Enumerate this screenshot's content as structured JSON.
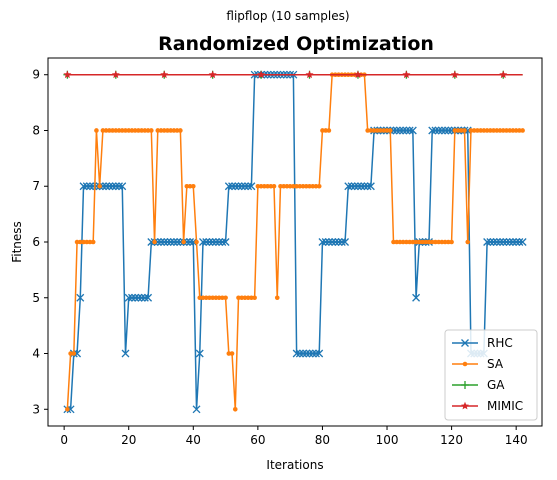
{
  "chart_data": {
    "type": "line",
    "suptitle": "flipflop (10 samples)",
    "title": "Randomized Optimization",
    "xlabel": "Iterations",
    "ylabel": "Fitness",
    "xlim": [
      -5,
      148
    ],
    "ylim": [
      2.7,
      9.3
    ],
    "xticks": [
      0,
      20,
      40,
      60,
      80,
      100,
      120,
      140
    ],
    "yticks": [
      3,
      4,
      5,
      6,
      7,
      8,
      9
    ],
    "grid": false,
    "legend_position": "lower-right",
    "series": [
      {
        "name": "RHC",
        "color": "#1f77b4",
        "marker": "x",
        "segments": [
          [
            1,
            3
          ],
          [
            2,
            3
          ],
          [
            3,
            4
          ],
          [
            4,
            4
          ],
          [
            5,
            5
          ],
          [
            6,
            7
          ],
          [
            18,
            7
          ],
          [
            19,
            4
          ],
          [
            20,
            5
          ],
          [
            26,
            5
          ],
          [
            27,
            6
          ],
          [
            40,
            6
          ],
          [
            41,
            3
          ],
          [
            42,
            4
          ],
          [
            43,
            6
          ],
          [
            50,
            6
          ],
          [
            51,
            7
          ],
          [
            58,
            7
          ],
          [
            59,
            9
          ],
          [
            71,
            9
          ],
          [
            72,
            4
          ],
          [
            79,
            4
          ],
          [
            80,
            6
          ],
          [
            87,
            6
          ],
          [
            88,
            7
          ],
          [
            95,
            7
          ],
          [
            96,
            8
          ],
          [
            108,
            8
          ],
          [
            109,
            5
          ],
          [
            110,
            6
          ],
          [
            113,
            6
          ],
          [
            114,
            8
          ],
          [
            125,
            8
          ],
          [
            126,
            4
          ],
          [
            130,
            4
          ],
          [
            131,
            6
          ],
          [
            142,
            6
          ]
        ]
      },
      {
        "name": "SA",
        "color": "#ff7f0e",
        "marker": "o",
        "segments": [
          [
            1,
            3
          ],
          [
            2,
            4
          ],
          [
            3,
            4
          ],
          [
            4,
            6
          ],
          [
            9,
            6
          ],
          [
            10,
            8
          ],
          [
            11,
            7
          ],
          [
            12,
            8
          ],
          [
            27,
            8
          ],
          [
            28,
            6
          ],
          [
            29,
            8
          ],
          [
            36,
            8
          ],
          [
            37,
            6
          ],
          [
            38,
            7
          ],
          [
            40,
            7
          ],
          [
            41,
            6
          ],
          [
            42,
            5
          ],
          [
            50,
            5
          ],
          [
            51,
            4
          ],
          [
            52,
            4
          ],
          [
            53,
            3
          ],
          [
            54,
            5
          ],
          [
            59,
            5
          ],
          [
            60,
            7
          ],
          [
            65,
            7
          ],
          [
            66,
            5
          ],
          [
            67,
            7
          ],
          [
            79,
            7
          ],
          [
            80,
            8
          ],
          [
            82,
            8
          ],
          [
            83,
            9
          ],
          [
            93,
            9
          ],
          [
            94,
            8
          ],
          [
            101,
            8
          ],
          [
            102,
            6
          ],
          [
            120,
            6
          ],
          [
            121,
            8
          ],
          [
            124,
            8
          ],
          [
            125,
            6
          ],
          [
            126,
            8
          ],
          [
            142,
            8
          ]
        ]
      },
      {
        "name": "GA",
        "color": "#2ca02c",
        "marker": "+",
        "segments": [
          [
            1,
            9
          ],
          [
            142,
            9
          ]
        ]
      },
      {
        "name": "MIMIC",
        "color": "#d62728",
        "marker": "*",
        "segments": [
          [
            1,
            9
          ],
          [
            142,
            9
          ]
        ]
      }
    ]
  }
}
